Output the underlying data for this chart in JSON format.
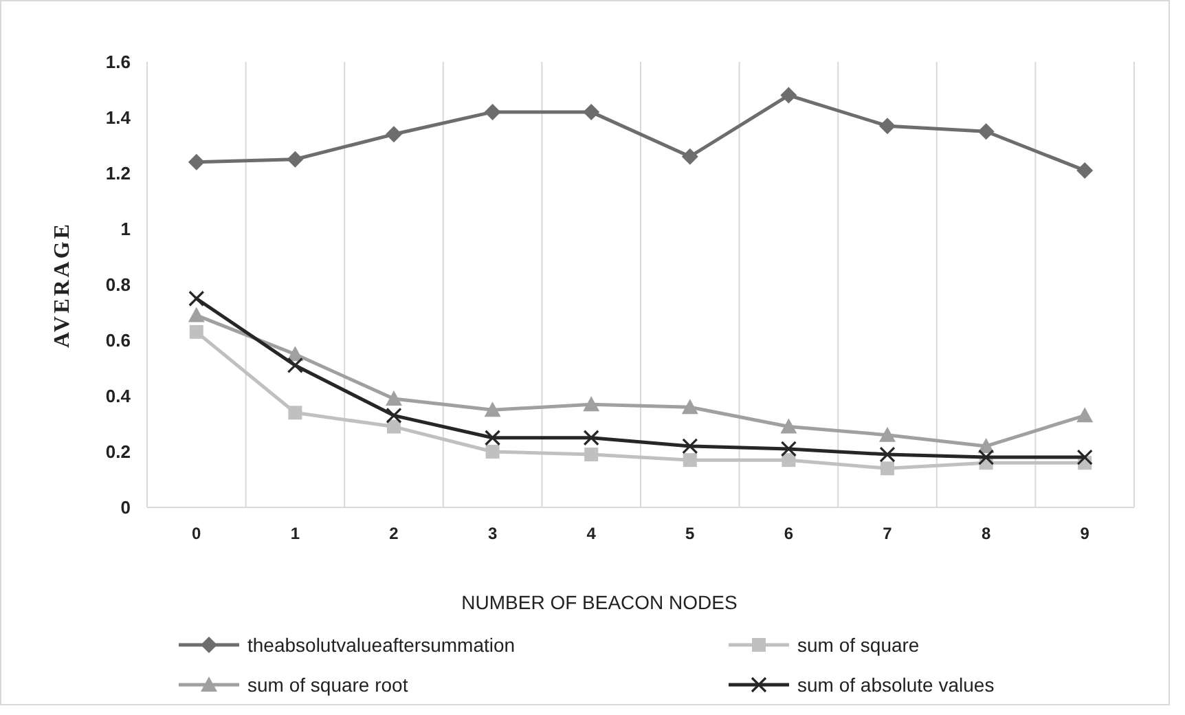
{
  "chart_data": {
    "type": "line",
    "xlabel": "NUMBER OF BEACON NODES",
    "ylabel": "AVERAGE",
    "categories": [
      "0",
      "1",
      "2",
      "3",
      "4",
      "5",
      "6",
      "7",
      "8",
      "9"
    ],
    "ylim": [
      0,
      1.6
    ],
    "yticks": [
      0,
      0.2,
      0.4,
      0.6,
      0.8,
      {
        "value": 1,
        "label": "1"
      },
      1.2,
      1.4,
      1.6
    ],
    "grid": "x",
    "legend": "bottom",
    "series": [
      {
        "name": "theabsolutvalueaftersummation",
        "color": "#6d6d6d",
        "marker": "diamond",
        "values": [
          1.24,
          1.25,
          1.34,
          1.42,
          1.42,
          1.26,
          1.48,
          1.37,
          1.35,
          1.21
        ]
      },
      {
        "name": "sum of square",
        "color": "#c0c0c0",
        "marker": "square",
        "values": [
          0.63,
          0.34,
          0.29,
          0.2,
          0.19,
          0.17,
          0.17,
          0.14,
          0.16,
          0.16
        ]
      },
      {
        "name": "sum of square root",
        "color": "#a0a0a0",
        "marker": "triangle",
        "values": [
          0.69,
          0.55,
          0.39,
          0.35,
          0.37,
          0.36,
          0.29,
          0.26,
          0.22,
          0.33
        ]
      },
      {
        "name": "sum of absolute values",
        "color": "#262626",
        "marker": "cross",
        "values": [
          0.75,
          0.51,
          0.33,
          0.25,
          0.25,
          0.22,
          0.21,
          0.19,
          0.18,
          0.18
        ]
      }
    ]
  }
}
